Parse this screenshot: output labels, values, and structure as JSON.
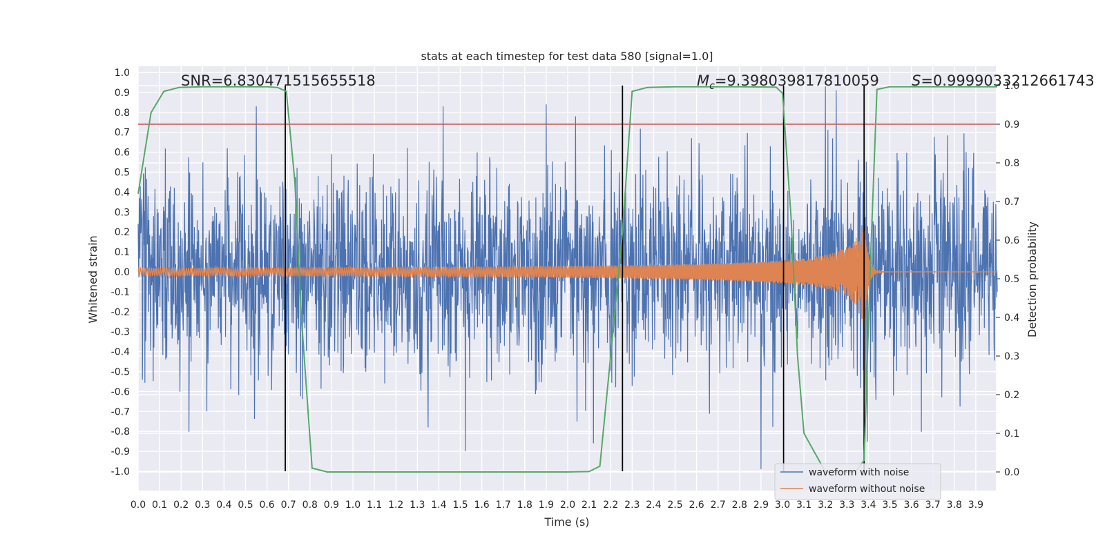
{
  "chart_data": {
    "type": "line",
    "title": "stats at each timestep for test data 580 [signal=1.0]",
    "xlabel": "Time (s)",
    "ylabel": "Whitened strain",
    "y2label": "Detection probability",
    "xlim": [
      0.0,
      4.0
    ],
    "ylim": [
      -1.1,
      1.03
    ],
    "y2lim": [
      -0.05,
      1.05
    ],
    "x_ticks": [
      "0.0",
      "0.1",
      "0.2",
      "0.3",
      "0.4",
      "0.5",
      "0.6",
      "0.7",
      "0.8",
      "0.9",
      "1.0",
      "1.1",
      "1.2",
      "1.3",
      "1.4",
      "1.5",
      "1.6",
      "1.7",
      "1.8",
      "1.9",
      "2.0",
      "2.1",
      "2.2",
      "2.3",
      "2.4",
      "2.5",
      "2.6",
      "2.7",
      "2.8",
      "2.9",
      "3.0",
      "3.1",
      "3.2",
      "3.3",
      "3.4",
      "3.5",
      "3.6",
      "3.7",
      "3.8",
      "3.9"
    ],
    "y_ticks": [
      "1.0",
      "0.9",
      "0.8",
      "0.7",
      "0.6",
      "0.5",
      "0.4",
      "0.3",
      "0.2",
      "0.1",
      "0.0",
      "-0.1",
      "-0.2",
      "-0.3",
      "-0.4",
      "-0.5",
      "-0.6",
      "-0.7",
      "-0.8",
      "-0.9",
      "-1.0"
    ],
    "y2_ticks": [
      "1.0",
      "0.9",
      "0.8",
      "0.7",
      "0.6",
      "0.5",
      "0.4",
      "0.3",
      "0.2",
      "0.1",
      "0.0"
    ],
    "annotations": {
      "snr": "SNR=6.830471515655518",
      "mc_symbol": "M",
      "mc_sub": "c",
      "mc_value": "=9.398039817810059",
      "s_symbol": "S",
      "s_value": "=0.9999033212661743"
    },
    "threshold": {
      "y2": 0.9,
      "color": "#c44e52"
    },
    "vertical_lines": [
      0.685,
      2.255,
      3.005,
      3.38
    ],
    "series": [
      {
        "name": "waveform with noise",
        "color": "#4c72b0",
        "noise_amplitude": 0.3,
        "peak_points": [
          {
            "x": 0.55,
            "y": 0.83
          },
          {
            "x": 1.42,
            "y": 0.83
          },
          {
            "x": 1.9,
            "y": 0.84
          },
          {
            "x": 3.2,
            "y": 0.93
          },
          {
            "x": 3.25,
            "y": 0.91
          },
          {
            "x": 2.9,
            "y": -0.99
          },
          {
            "x": 2.12,
            "y": -0.86
          },
          {
            "x": 1.35,
            "y": -0.78
          },
          {
            "x": 0.32,
            "y": -0.7
          }
        ]
      },
      {
        "name": "waveform without noise",
        "color": "#dd8452",
        "chirp_start": 0.0,
        "chirp_merge": 3.38,
        "amplitude_start": 0.018,
        "amplitude_peak": 0.26
      },
      {
        "name": "detection probability",
        "axis": "y2",
        "color": "#55a868",
        "x": [
          0.0,
          0.06,
          0.12,
          0.19,
          0.3,
          0.45,
          0.6,
          0.65,
          0.69,
          0.73,
          0.76,
          0.81,
          0.88,
          1.0,
          2.0,
          2.1,
          2.15,
          2.2,
          2.255,
          2.3,
          2.37,
          2.5,
          2.8,
          2.97,
          3.0,
          3.04,
          3.07,
          3.1,
          3.2,
          3.3,
          3.34,
          3.38,
          3.41,
          3.44,
          3.5,
          4.0
        ],
        "y": [
          0.72,
          0.93,
          0.985,
          0.995,
          0.997,
          0.997,
          0.997,
          0.995,
          0.985,
          0.75,
          0.4,
          0.01,
          0.0,
          0.0,
          0.0,
          0.001,
          0.015,
          0.3,
          0.62,
          0.985,
          0.995,
          0.997,
          0.997,
          0.996,
          0.98,
          0.66,
          0.3,
          0.1,
          0.0,
          0.0,
          0.0,
          0.03,
          0.55,
          0.99,
          0.997,
          0.997
        ]
      }
    ],
    "legend": {
      "position": "lower-right",
      "entries": [
        "waveform with noise",
        "waveform without noise"
      ]
    }
  }
}
